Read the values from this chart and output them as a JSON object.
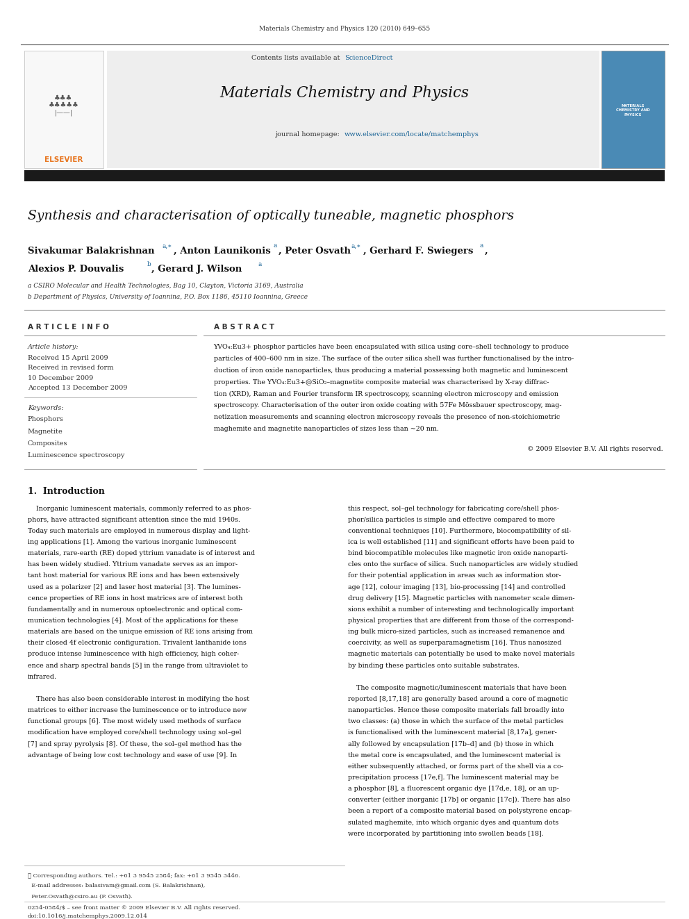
{
  "page_width": 9.92,
  "page_height": 13.23,
  "background_color": "#ffffff",
  "journal_ref": "Materials Chemistry and Physics 120 (2010) 649–655",
  "sciencedirect_text": "ScienceDirect",
  "sciencedirect_color": "#1a6496",
  "journal_title": "Materials Chemistry and Physics",
  "journal_url": "www.elsevier.com/locate/matchemphys",
  "journal_url_color": "#1a6496",
  "black_bar_color": "#1a1a1a",
  "paper_title": "Synthesis and characterisation of optically tuneable, magnetic phosphors",
  "affil_a": "a CSIRO Molecular and Health Technologies, Bag 10, Clayton, Victoria 3169, Australia",
  "affil_b": "b Department of Physics, University of Ioannina, P.O. Box 1186, 45110 Ioannina, Greece",
  "article_info_title": "A R T I C L E  I N F O",
  "abstract_title": "A B S T R A C T",
  "article_history_label": "Article history:",
  "received": "Received 15 April 2009",
  "received_revised": "Received in revised form",
  "received_revised2": "10 December 2009",
  "accepted": "Accepted 13 December 2009",
  "keywords_label": "Keywords:",
  "keywords": [
    "Phosphors",
    "Magnetite",
    "Composites",
    "Luminescence spectroscopy"
  ],
  "intro_title": "1.  Introduction",
  "footnote_line1": "★ Corresponding authors. Tel.: +61 3 9545 2584; fax: +61 3 9545 3446.",
  "footnote_line2": "  E-mail addresses: balasivam@gmail.com (S. Balakrishnan),",
  "footnote_line3": "  Peter.Osvath@csiro.au (P. Osvath).",
  "footer_line1": "0254-0584/$ – see front matter © 2009 Elsevier B.V. All rights reserved.",
  "footer_line2": "doi:10.1016/j.matchemphys.2009.12.014",
  "abstract_lines": [
    "YVO₄:Eu3+ phosphor particles have been encapsulated with silica using core–shell technology to produce",
    "particles of 400–600 nm in size. The surface of the outer silica shell was further functionalised by the intro-",
    "duction of iron oxide nanoparticles, thus producing a material possessing both magnetic and luminescent",
    "properties. The YVO₄:Eu3+@SiO₂–magnetite composite material was characterised by X-ray diffrac-",
    "tion (XRD), Raman and Fourier transform IR spectroscopy, scanning electron microscopy and emission",
    "spectroscopy. Characterisation of the outer iron oxide coating with 57Fe Mössbauer spectroscopy, mag-",
    "netization measurements and scanning electron microscopy reveals the presence of non-stoichiometric",
    "maghemite and magnetite nanoparticles of sizes less than ~20 nm."
  ],
  "copyright_line": "© 2009 Elsevier B.V. All rights reserved.",
  "intro_col1_lines": [
    "    Inorganic luminescent materials, commonly referred to as phos-",
    "phors, have attracted significant attention since the mid 1940s.",
    "Today such materials are employed in numerous display and light-",
    "ing applications [1]. Among the various inorganic luminescent",
    "materials, rare-earth (RE) doped yttrium vanadate is of interest and",
    "has been widely studied. Yttrium vanadate serves as an impor-",
    "tant host material for various RE ions and has been extensively",
    "used as a polarizer [2] and laser host material [3]. The lumines-",
    "cence properties of RE ions in host matrices are of interest both",
    "fundamentally and in numerous optoelectronic and optical com-",
    "munication technologies [4]. Most of the applications for these",
    "materials are based on the unique emission of RE ions arising from",
    "their closed 4f electronic configuration. Trivalent lanthanide ions",
    "produce intense luminescence with high efficiency, high coher-",
    "ence and sharp spectral bands [5] in the range from ultraviolet to",
    "infrared.",
    "",
    "    There has also been considerable interest in modifying the host",
    "matrices to either increase the luminescence or to introduce new",
    "functional groups [6]. The most widely used methods of surface",
    "modification have employed core/shell technology using sol–gel",
    "[7] and spray pyrolysis [8]. Of these, the sol–gel method has the",
    "advantage of being low cost technology and ease of use [9]. In"
  ],
  "intro_col2_lines": [
    "this respect, sol–gel technology for fabricating core/shell phos-",
    "phor/silica particles is simple and effective compared to more",
    "conventional techniques [10]. Furthermore, biocompatibility of sil-",
    "ica is well established [11] and significant efforts have been paid to",
    "bind biocompatible molecules like magnetic iron oxide nanoparti-",
    "cles onto the surface of silica. Such nanoparticles are widely studied",
    "for their potential application in areas such as information stor-",
    "age [12], colour imaging [13], bio-processing [14] and controlled",
    "drug delivery [15]. Magnetic particles with nanometer scale dimen-",
    "sions exhibit a number of interesting and technologically important",
    "physical properties that are different from those of the correspond-",
    "ing bulk micro-sized particles, such as increased remanence and",
    "coercivity, as well as superparamagnetism [16]. Thus nanosized",
    "magnetic materials can potentially be used to make novel materials",
    "by binding these particles onto suitable substrates.",
    "",
    "    The composite magnetic/luminescent materials that have been",
    "reported [8,17,18] are generally based around a core of magnetic",
    "nanoparticles. Hence these composite materials fall broadly into",
    "two classes: (a) those in which the surface of the metal particles",
    "is functionalised with the luminescent material [8,17a], gener-",
    "ally followed by encapsulation [17b–d] and (b) those in which",
    "the metal core is encapsulated, and the luminescent material is",
    "either subsequently attached, or forms part of the shell via a co-",
    "precipitation process [17e,f]. The luminescent material may be",
    "a phosphor [8], a fluorescent organic dye [17d,e, 18], or an up-",
    "converter (either inorganic [17b] or organic [17c]). There has also",
    "been a report of a composite material based on polystyrene encap-",
    "sulated maghemite, into which organic dyes and quantum dots",
    "were incorporated by partitioning into swollen beads [18]."
  ]
}
